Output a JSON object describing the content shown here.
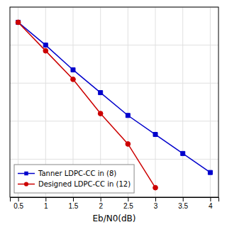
{
  "chart_data": {
    "type": "line",
    "title": "",
    "xlabel": "Eb/N0(dB)",
    "x": [
      0.5,
      1.0,
      1.5,
      2.0,
      2.5,
      3.0,
      3.5,
      4.0
    ],
    "series": [
      {
        "name": "Tanner LDPC-CC in (8)",
        "color": "#0000cc",
        "marker": "square",
        "values": [
          0.92,
          0.8,
          0.67,
          0.55,
          0.43,
          0.33,
          0.23,
          0.13
        ]
      },
      {
        "name": "Designed LDPC-CC in (12)",
        "color": "#cc0000",
        "marker": "circle",
        "values": [
          0.92,
          0.77,
          0.62,
          0.44,
          0.28,
          0.05,
          null,
          null
        ]
      }
    ],
    "xlim": [
      0.35,
      4.15
    ],
    "ylim": [
      0.0,
      1.0
    ],
    "xticks": [
      0.5,
      1,
      1.5,
      2,
      2.5,
      3,
      3.5,
      4
    ],
    "yticks": [
      0,
      0.2,
      0.4,
      0.6,
      0.8,
      1
    ],
    "grid": true,
    "legend": "lower left",
    "tick_labels": "x"
  }
}
